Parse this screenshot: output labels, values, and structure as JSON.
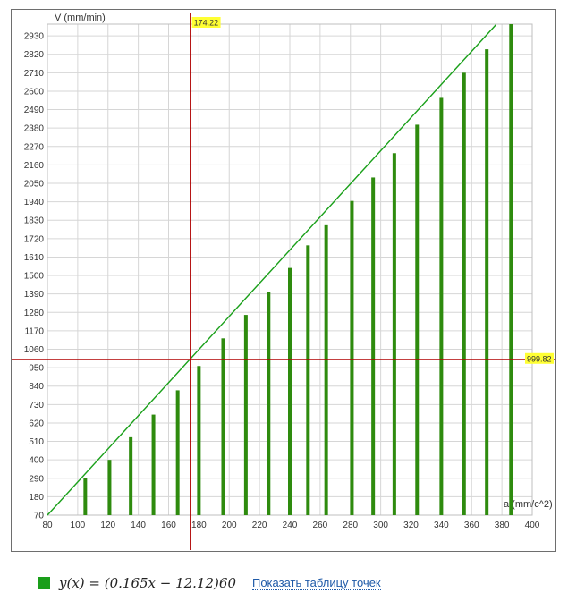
{
  "chart_data": {
    "type": "bar",
    "title": "",
    "xlabel": "a (mm/c^2)",
    "ylabel": "V (mm/min)",
    "xlim": [
      80,
      400
    ],
    "ylim": [
      70,
      3000
    ],
    "x_ticks": [
      80,
      100,
      120,
      140,
      160,
      180,
      200,
      220,
      240,
      260,
      280,
      300,
      320,
      340,
      360,
      380,
      400
    ],
    "y_ticks": [
      70,
      180,
      290,
      400,
      510,
      620,
      730,
      840,
      950,
      1060,
      1170,
      1280,
      1390,
      1500,
      1610,
      1720,
      1830,
      1940,
      2050,
      2160,
      2270,
      2380,
      2490,
      2600,
      2710,
      2820,
      2930
    ],
    "grid": true,
    "series": [
      {
        "name": "y(x) = (0.165x − 12.12)60",
        "style": "bars",
        "color": "#2e8b0e",
        "x": [
          105,
          121,
          135,
          150,
          166,
          180,
          196,
          211,
          226,
          240,
          252,
          264,
          281,
          295,
          309,
          324,
          340,
          355,
          370,
          386
        ],
        "values": [
          290,
          400,
          535,
          670,
          815,
          960,
          1125,
          1265,
          1400,
          1545,
          1680,
          1800,
          1945,
          2085,
          2230,
          2400,
          2560,
          2710,
          2850,
          3000
        ]
      },
      {
        "name": "y(x) = (0.165x − 12.12)60",
        "style": "line",
        "color": "#1aa01a",
        "x": [
          80,
          376
        ],
        "values": [
          70,
          2996
        ]
      }
    ],
    "crosshair": {
      "x": 174.22,
      "y": 999.82,
      "x_label": "174.22",
      "y_label": "999.82",
      "color": "#b00000",
      "label_bg": "#ffff33"
    }
  },
  "legend": {
    "swatch_color": "#1a9e1a",
    "formula": "y(x) = (0.165x − 12.12)60",
    "link_text": "Показать таблицу точек"
  }
}
